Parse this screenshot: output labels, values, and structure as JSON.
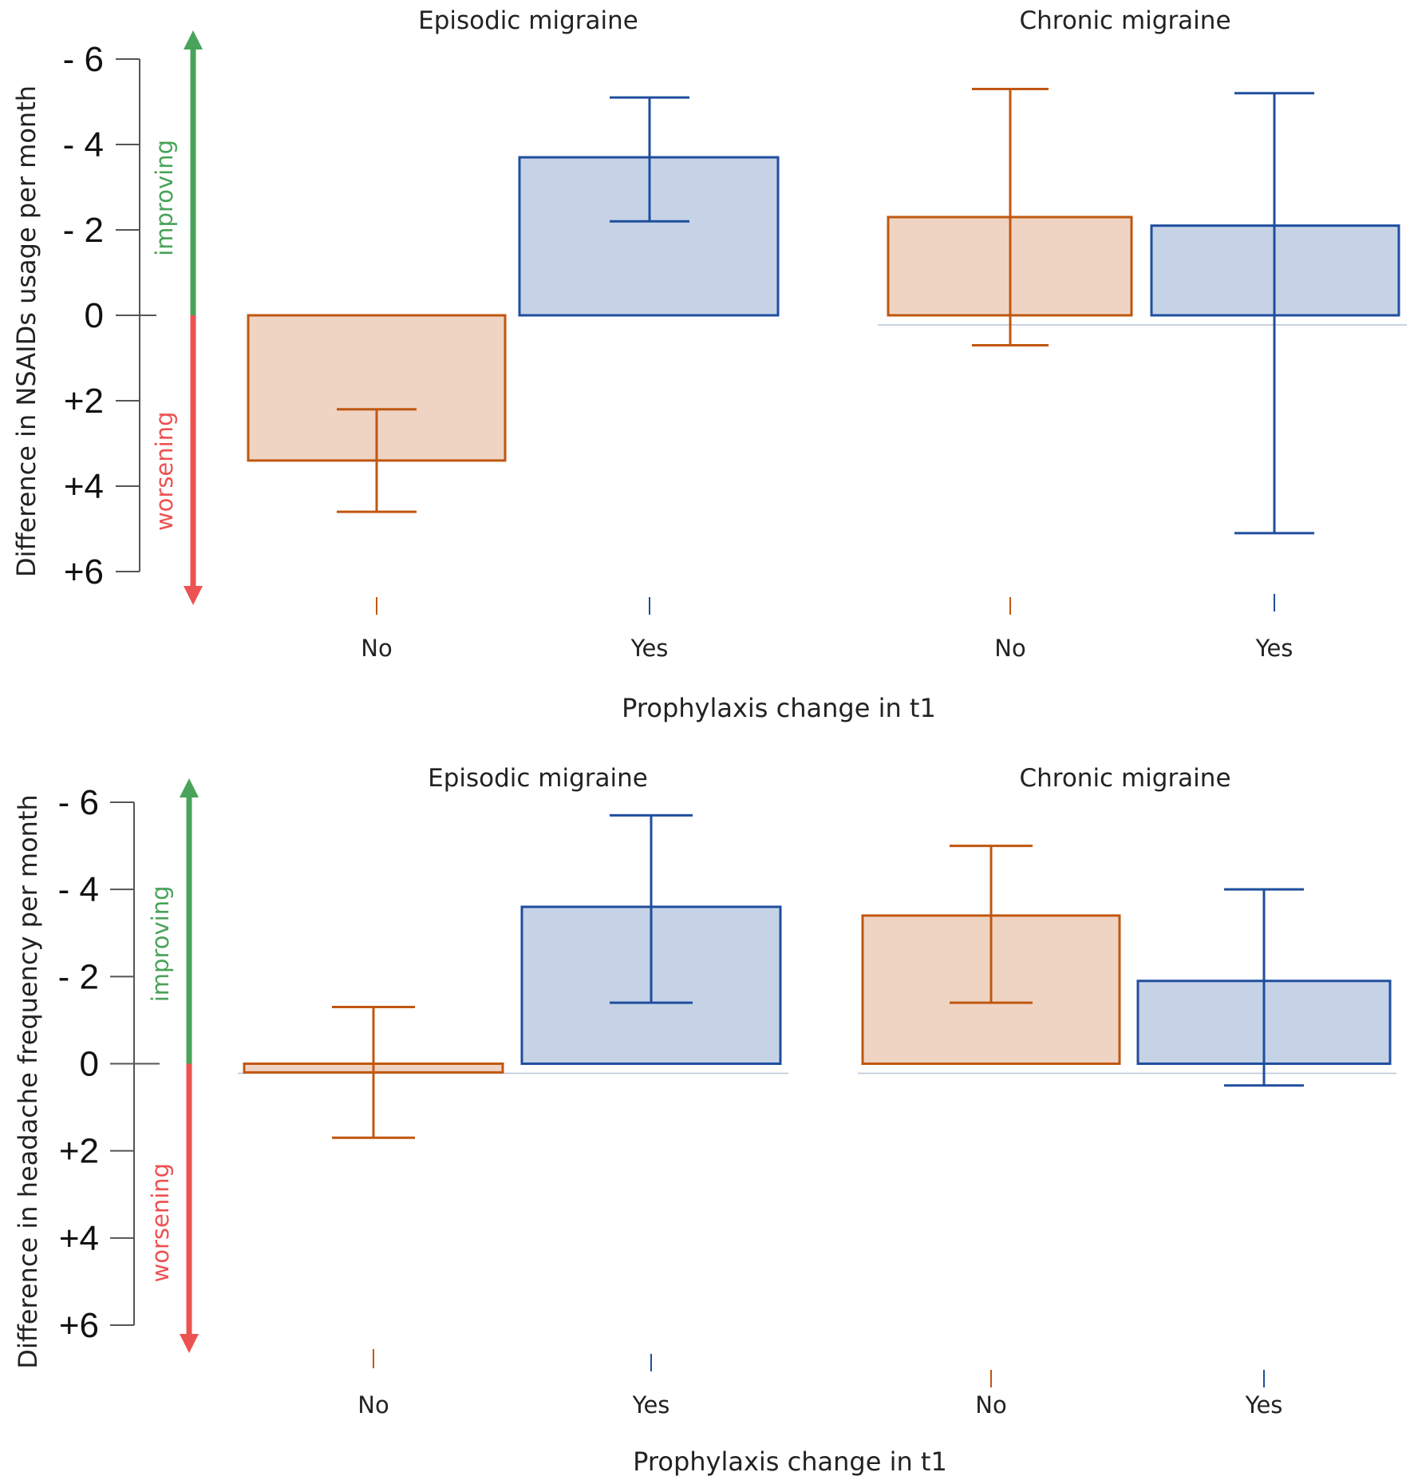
{
  "chart_data": [
    {
      "type": "bar",
      "title": "",
      "ylabel": "Difference in NSAIDs usage per month",
      "xlabel": "Prophylaxis change in t1",
      "ylim": [
        -6,
        6
      ],
      "y_inverted": true,
      "yticks": [
        -6,
        -4,
        -2,
        0,
        2,
        4,
        6
      ],
      "ytick_labels": [
        "- 6",
        "- 4",
        "- 2",
        "0",
        "+2",
        "+4",
        "+6"
      ],
      "improving_label": "improving",
      "worsening_label": "worsening",
      "groups": [
        {
          "title": "Episodic migraine",
          "bars": [
            {
              "category": "No",
              "value": 3.4,
              "ci_low": 2.2,
              "ci_high": 4.6,
              "color": "#c0570f",
              "fill": "#efd4c4"
            },
            {
              "category": "Yes",
              "value": -3.7,
              "ci_low": -5.1,
              "ci_high": -2.2,
              "color": "#1f4e9e",
              "fill": "#c6d3e6"
            }
          ]
        },
        {
          "title": "Chronic migraine",
          "bars": [
            {
              "category": "No",
              "value": -2.3,
              "ci_low": -5.3,
              "ci_high": 0.7,
              "color": "#c0570f",
              "fill": "#efd4c4"
            },
            {
              "category": "Yes",
              "value": -2.1,
              "ci_low": -5.2,
              "ci_high": 5.1,
              "color": "#1f4e9e",
              "fill": "#c6d3e6"
            }
          ]
        }
      ]
    },
    {
      "type": "bar",
      "title": "",
      "ylabel": "Difference in headache frequency per month",
      "xlabel": "Prophylaxis change in t1",
      "ylim": [
        -6,
        6
      ],
      "y_inverted": true,
      "yticks": [
        -6,
        -4,
        -2,
        0,
        2,
        4,
        6
      ],
      "ytick_labels": [
        "- 6",
        "- 4",
        "- 2",
        "0",
        "+2",
        "+4",
        "+6"
      ],
      "improving_label": "improving",
      "worsening_label": "worsening",
      "groups": [
        {
          "title": "Episodic migraine",
          "bars": [
            {
              "category": "No",
              "value": 0.2,
              "ci_low": -1.3,
              "ci_high": 1.7,
              "color": "#c0570f",
              "fill": "#efd4c4"
            },
            {
              "category": "Yes",
              "value": -3.6,
              "ci_low": -5.7,
              "ci_high": -1.4,
              "color": "#1f4e9e",
              "fill": "#c6d3e6"
            }
          ]
        },
        {
          "title": "Chronic migraine",
          "bars": [
            {
              "category": "No",
              "value": -3.4,
              "ci_low": -5.0,
              "ci_high": -1.4,
              "color": "#c0570f",
              "fill": "#efd4c4"
            },
            {
              "category": "Yes",
              "value": -1.9,
              "ci_low": -4.0,
              "ci_high": 0.5,
              "color": "#1f4e9e",
              "fill": "#c6d3e6"
            }
          ]
        }
      ]
    }
  ],
  "colors": {
    "improving": "#4aa35a",
    "worsening": "#ec5252",
    "axis": "#555555"
  }
}
